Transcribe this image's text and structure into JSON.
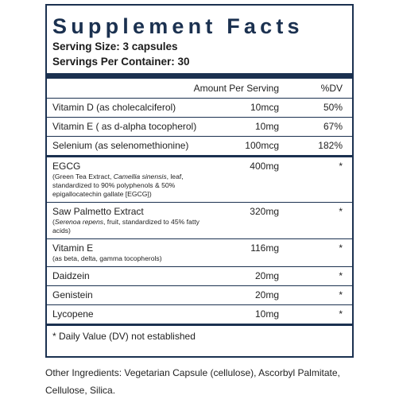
{
  "header": {
    "title": "Supplement Facts",
    "serving_size": "Serving Size: 3 capsules",
    "servings_per_container": "Servings Per Container: 30"
  },
  "table": {
    "columns": [
      "Amount Per Serving",
      "%DV"
    ],
    "rows": [
      {
        "name": "Vitamin D (as cholecalciferol)",
        "amount": "10mcg",
        "dv": "50%"
      },
      {
        "name": "Vitamin E ( as d-alpha tocopherol)",
        "amount": "10mg",
        "dv": "67%"
      },
      {
        "name": "Selenium (as selenomethionine)",
        "amount": "100mcg",
        "dv": "182%",
        "thick_after": true
      },
      {
        "name": "EGCG",
        "sub": [
          {
            "text": "(Green Tea Extract, "
          },
          {
            "text": "Camellia sinensis",
            "italic": true
          },
          {
            "text": ", leaf, standardized to 90% polyphenols & 50% epigallocatechin gallate [EGCG])"
          }
        ],
        "amount": "400mg",
        "dv": "*"
      },
      {
        "name": "Saw Palmetto Extract",
        "sub": [
          {
            "text": "("
          },
          {
            "text": "Serenoa repens",
            "italic": true
          },
          {
            "text": ", fruit, standardized to 45% fatty acids)"
          }
        ],
        "amount": "320mg",
        "dv": "*"
      },
      {
        "name": "Vitamin E",
        "sub": [
          {
            "text": "(as beta, delta, gamma tocopherols)"
          }
        ],
        "amount": "116mg",
        "dv": "*"
      },
      {
        "name": "Daidzein",
        "amount": "20mg",
        "dv": "*"
      },
      {
        "name": "Genistein",
        "amount": "20mg",
        "dv": "*"
      },
      {
        "name": "Lycopene",
        "amount": "10mg",
        "dv": "*",
        "thick_after": true
      }
    ]
  },
  "footnote": "* Daily Value (DV) not established",
  "other_ingredients": "Other Ingredients: Vegetarian Capsule (cellulose), Ascorbyl Palmitate, Cellulose, Silica."
}
